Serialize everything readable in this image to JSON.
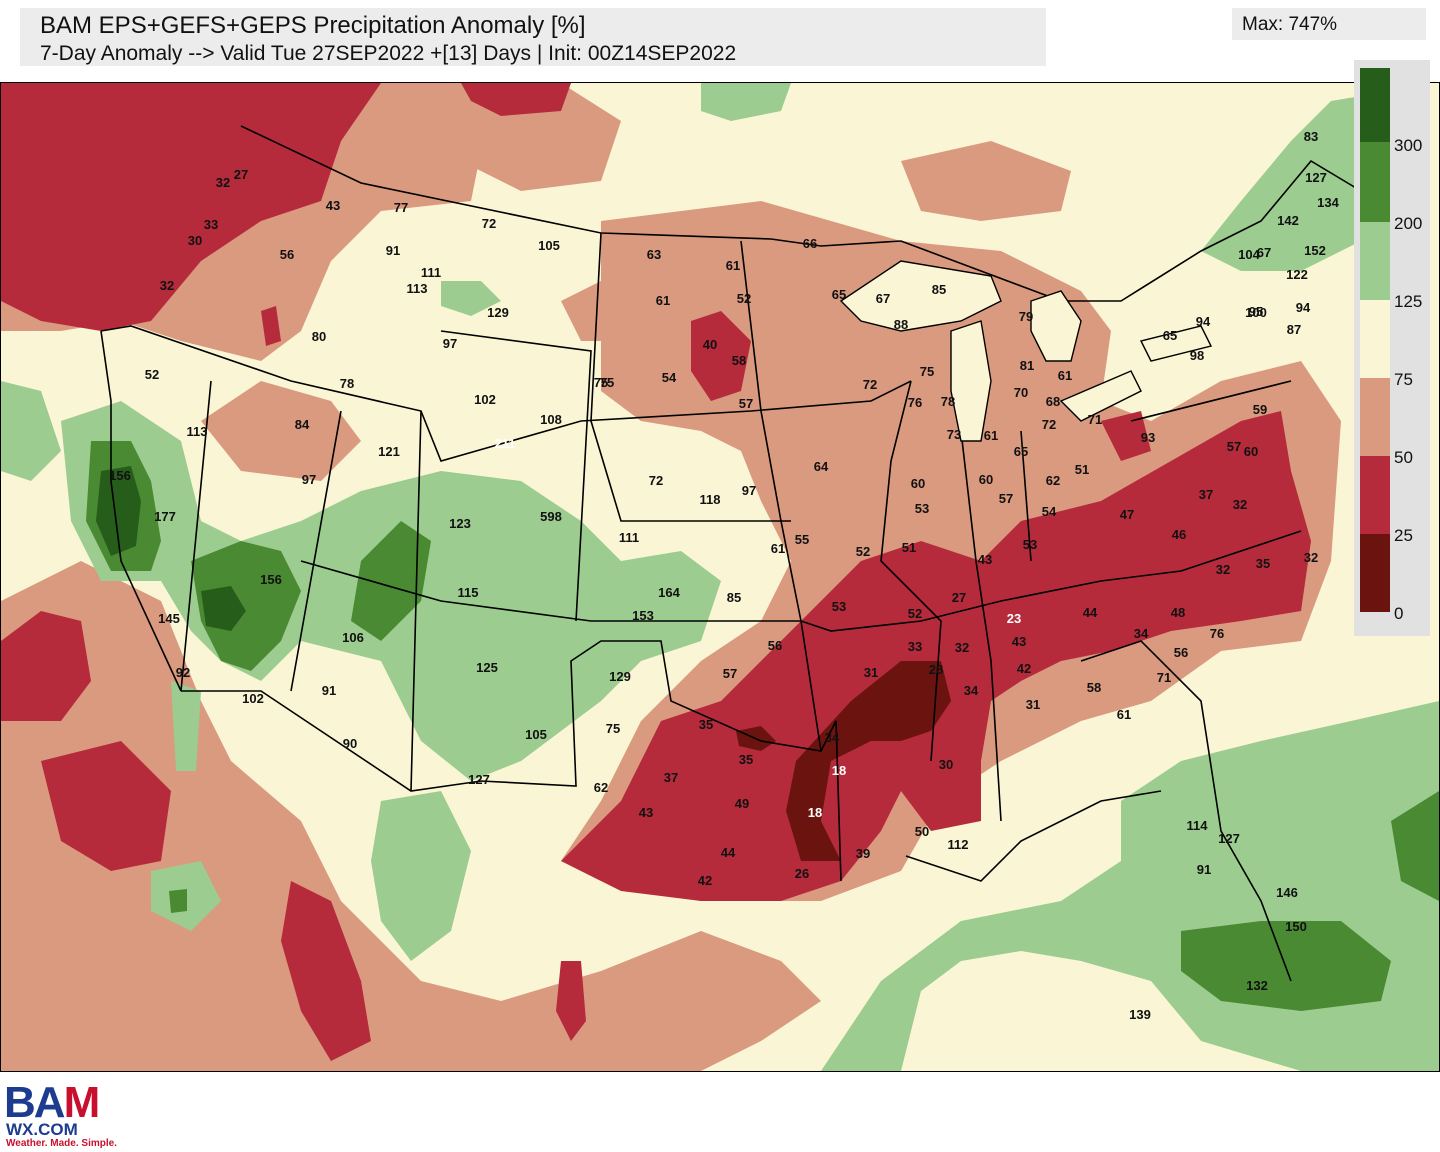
{
  "header": {
    "title": "BAM EPS+GEFS+GEPS Precipitation Anomaly [%]",
    "subtitle": "7-Day Anomaly --> Valid Tue 27SEP2022 +[13] Days | Init: 00Z14SEP2022",
    "max_label": "Max: 747%"
  },
  "legend": {
    "ticks": [
      "300",
      "200",
      "125",
      "75",
      "50",
      "25",
      "0"
    ],
    "colors": [
      "#275d1b",
      "#4a8a33",
      "#9ccc8f",
      "#faf6d5",
      "#d99a7f",
      "#b52b3b",
      "#6b140f"
    ]
  },
  "palette": {
    "below_25": "#6b140f",
    "p25_50": "#b52b3b",
    "p50_75": "#d99a7f",
    "p75_125": "#faf6d5",
    "p125_200": "#9ccc8f",
    "p200_300": "#4a8a33",
    "above_300": "#275d1b"
  },
  "station_values": [
    "27",
    "32",
    "33",
    "30",
    "32",
    "43",
    "56",
    "77",
    "72",
    "105",
    "91",
    "111",
    "113",
    "129",
    "80",
    "52",
    "78",
    "97",
    "102",
    "108",
    "75",
    "113",
    "84",
    "97",
    "121",
    "211",
    "156",
    "177",
    "123",
    "598",
    "156",
    "115",
    "145",
    "106",
    "92",
    "102",
    "91",
    "90",
    "125",
    "105",
    "127",
    "75",
    "129",
    "62",
    "63",
    "61",
    "61",
    "52",
    "40",
    "54",
    "58",
    "75",
    "57",
    "72",
    "118",
    "97",
    "64",
    "111",
    "61",
    "55",
    "52",
    "164",
    "85",
    "153",
    "56",
    "53",
    "57",
    "35",
    "35",
    "34",
    "37",
    "49",
    "43",
    "44",
    "42",
    "18",
    "18",
    "26",
    "39",
    "50",
    "66",
    "65",
    "67",
    "85",
    "88",
    "75",
    "72",
    "76",
    "78",
    "73",
    "61",
    "79",
    "81",
    "70",
    "68",
    "61",
    "72",
    "71",
    "60",
    "53",
    "60",
    "57",
    "65",
    "62",
    "51",
    "54",
    "53",
    "51",
    "43",
    "52",
    "33",
    "31",
    "27",
    "32",
    "28",
    "23",
    "43",
    "42",
    "34",
    "30",
    "31",
    "44",
    "34",
    "56",
    "58",
    "61",
    "71",
    "76",
    "48",
    "47",
    "46",
    "37",
    "32",
    "32",
    "35",
    "32",
    "93",
    "59",
    "57",
    "60",
    "65",
    "94",
    "95",
    "98",
    "67",
    "104",
    "122",
    "100",
    "94",
    "87",
    "83",
    "127",
    "134",
    "142",
    "152",
    "114",
    "127",
    "91",
    "146",
    "150",
    "132",
    "139",
    "112",
    "86"
  ],
  "logo": {
    "big_left": "BA",
    "big_right": "M",
    "site": "WX.COM",
    "tagline": "Weather. Made. Simple."
  }
}
